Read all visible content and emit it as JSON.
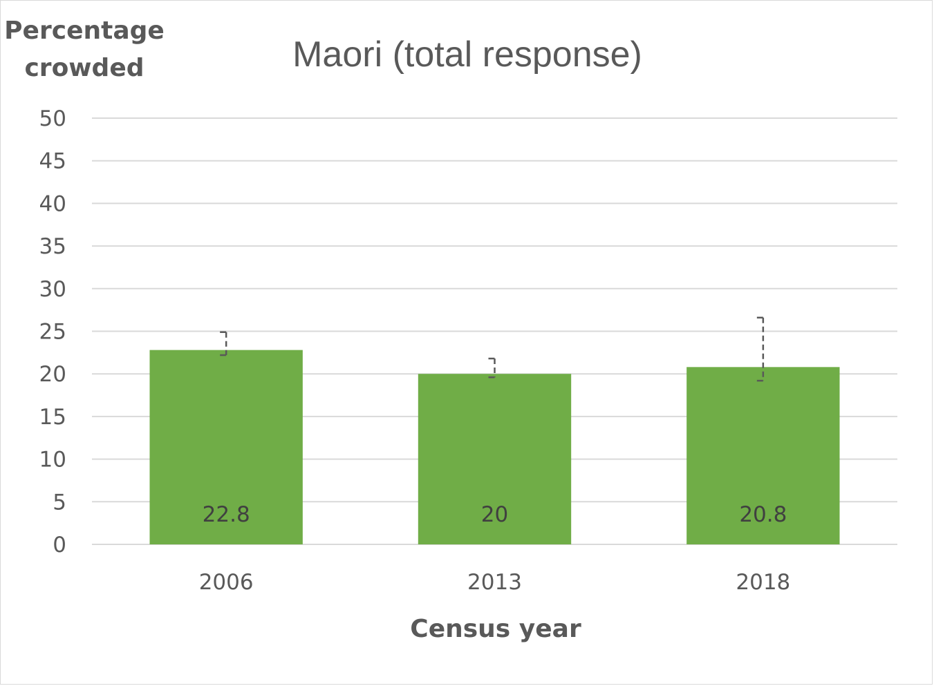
{
  "chart_data": {
    "type": "bar",
    "title": "Maori (total response)",
    "ylabel_lines": [
      "Percentage",
      "crowded"
    ],
    "xlabel": "Census year",
    "categories": [
      "2006",
      "2013",
      "2018"
    ],
    "values": [
      22.8,
      20,
      20.8
    ],
    "data_labels": [
      "22.8",
      "20",
      "20.8"
    ],
    "error_bars": [
      {
        "low": 22.2,
        "high": 24.9
      },
      {
        "low": 19.6,
        "high": 21.8
      },
      {
        "low": 19.2,
        "high": 26.6
      }
    ],
    "ylim": [
      0,
      50
    ],
    "yticks": [
      0,
      5,
      10,
      15,
      20,
      25,
      30,
      35,
      40,
      45,
      50
    ],
    "grid": true,
    "legend": "none",
    "bar_color": "#70ad47"
  }
}
